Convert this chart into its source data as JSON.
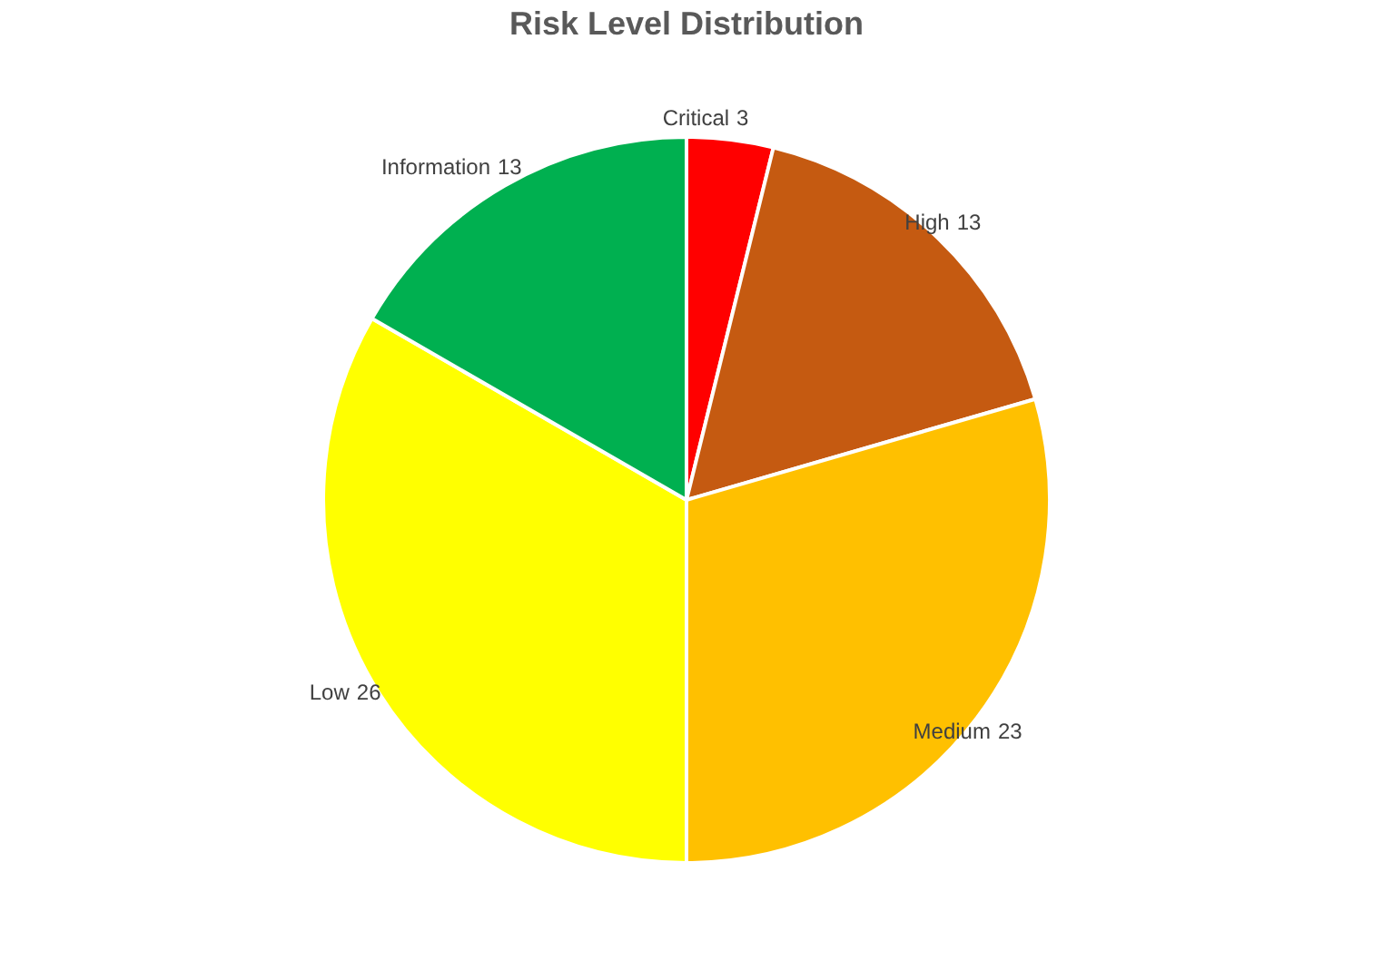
{
  "chart_data": {
    "type": "pie",
    "title": "Risk Level Distribution",
    "categories": [
      "Critical",
      "High",
      "Medium",
      "Low",
      "Information"
    ],
    "values": [
      3,
      13,
      23,
      26,
      13
    ],
    "colors": [
      "#ff0000",
      "#c55a11",
      "#ffc000",
      "#ffff00",
      "#00b050"
    ],
    "data_labels": true
  }
}
